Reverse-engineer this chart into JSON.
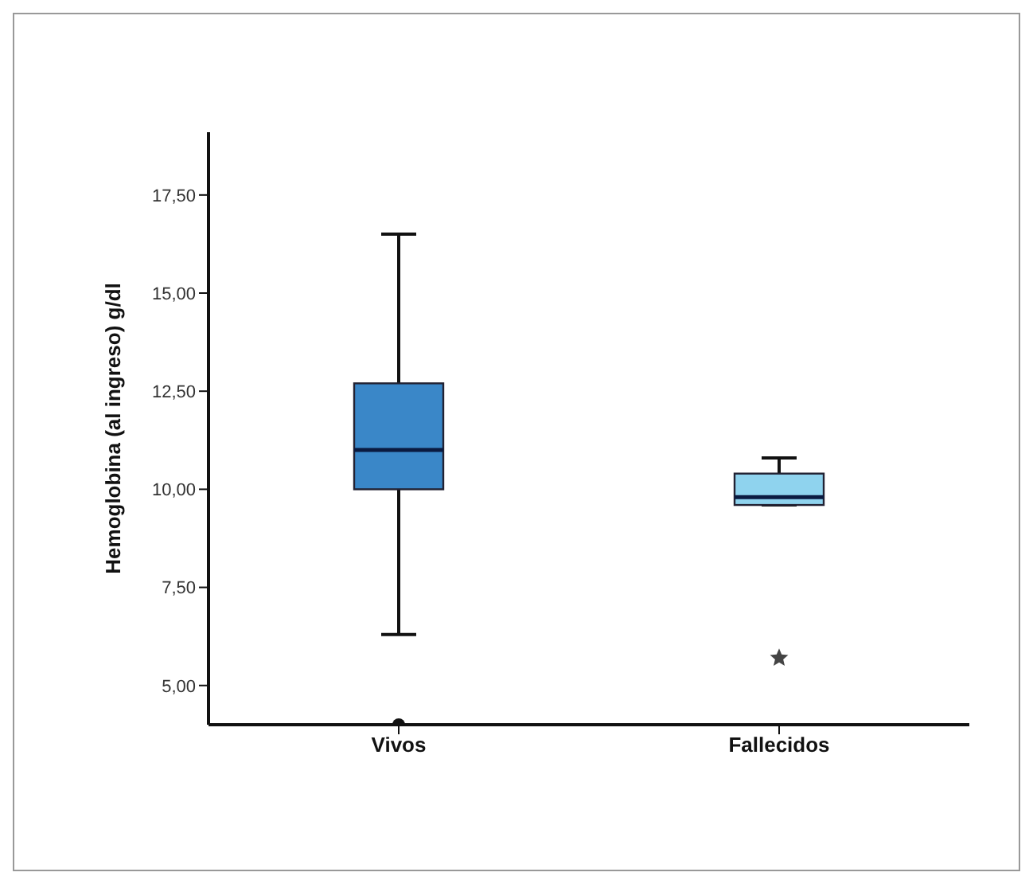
{
  "chart_data": {
    "type": "box",
    "ylabel": "Hemoglobina (al ingreso) g/dl",
    "categories": [
      "Vivos",
      "Fallecidos"
    ],
    "ylim": [
      4.0,
      19.1
    ],
    "yticks": [
      {
        "value": 5,
        "label": "5,00"
      },
      {
        "value": 7.5,
        "label": "7,50"
      },
      {
        "value": 10,
        "label": "10,00"
      },
      {
        "value": 12.5,
        "label": "12,50"
      },
      {
        "value": 15,
        "label": "15,00"
      },
      {
        "value": 17.5,
        "label": "17,50"
      }
    ],
    "grid": false,
    "series": [
      {
        "color": "#3a87c8",
        "marker": "circle",
        "boxes": [
          {
            "low": 6.3,
            "q1": 10.0,
            "median": 11.0,
            "q3": 12.7,
            "high": 16.5,
            "outliers": [
              4.0
            ]
          },
          null
        ]
      },
      {
        "color": "#8fd3ee",
        "marker": "star",
        "boxes": [
          null,
          {
            "low": 9.6,
            "q1": 9.6,
            "median": 9.8,
            "q3": 10.4,
            "high": 10.8,
            "outliers": [
              5.7
            ]
          }
        ]
      }
    ]
  }
}
